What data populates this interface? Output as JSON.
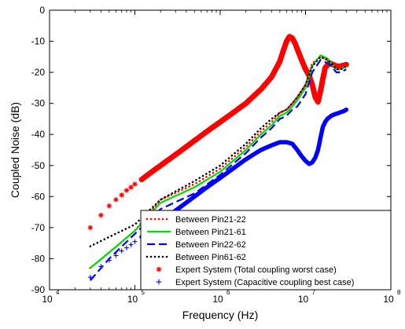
{
  "chart_data": {
    "type": "line",
    "title": "",
    "xlabel": "Frequency (Hz)",
    "ylabel": "Coupled Noise (dB)",
    "xscale": "log",
    "xlim": [
      10000,
      100000000
    ],
    "ylim": [
      -90,
      0
    ],
    "x_ticks": [
      {
        "base": "10",
        "exp": "4"
      },
      {
        "base": "10",
        "exp": "5"
      },
      {
        "base": "10",
        "exp": "6"
      },
      {
        "base": "10",
        "exp": "7"
      },
      {
        "base": "10",
        "exp": "8"
      }
    ],
    "y_ticks": [
      "-90",
      "-80",
      "-70",
      "-60",
      "-50",
      "-40",
      "-30",
      "-20",
      "-10",
      "0"
    ],
    "legend_position": "bottom-right",
    "series": [
      {
        "name": "Between Pin21-22",
        "color": "#ff0000",
        "style": "dotted",
        "x": [
          30000,
          50000,
          100000,
          200000,
          500000,
          1000000,
          2000000,
          3000000,
          4000000,
          5000000,
          6000000,
          7000000,
          8000000,
          10000000,
          12000000,
          15000000,
          18000000,
          20000000,
          23000000,
          26000000,
          30000000
        ],
        "y": [
          -83,
          -78,
          -71,
          -61,
          -56,
          -51,
          -44,
          -39,
          -36,
          -33,
          -32,
          -30,
          -28,
          -24,
          -17,
          -15,
          -16,
          -17,
          -19,
          -19,
          -18
        ]
      },
      {
        "name": "Between Pin21-61",
        "color": "#00dd00",
        "style": "solid",
        "x": [
          30000,
          50000,
          100000,
          200000,
          500000,
          1000000,
          2000000,
          3000000,
          4000000,
          5000000,
          6000000,
          7000000,
          8000000,
          10000000,
          12000000,
          15000000,
          18000000,
          20000000,
          23000000,
          26000000,
          30000000
        ],
        "y": [
          -83,
          -78,
          -71,
          -62,
          -57,
          -52,
          -45,
          -40,
          -37,
          -34,
          -33,
          -31,
          -29,
          -25,
          -18,
          -14.5,
          -15.5,
          -17,
          -19,
          -19,
          -18
        ]
      },
      {
        "name": "Between Pin22-62",
        "color": "#0000ff",
        "style": "dashed",
        "x": [
          30000,
          50000,
          100000,
          200000,
          500000,
          1000000,
          2000000,
          3000000,
          4000000,
          5000000,
          6000000,
          7000000,
          8000000,
          10000000,
          12000000,
          15000000,
          18000000,
          20000000,
          23000000,
          26000000,
          30000000
        ],
        "y": [
          -87,
          -80,
          -72,
          -64,
          -59,
          -53,
          -46,
          -41,
          -38,
          -35,
          -34,
          -32,
          -31,
          -27,
          -20,
          -16,
          -17,
          -18,
          -20,
          -20,
          -19
        ]
      },
      {
        "name": "Between Pin61-62",
        "color": "#000000",
        "style": "dotted",
        "x": [
          30000,
          50000,
          100000,
          200000,
          500000,
          1000000,
          2000000,
          3000000,
          4000000,
          5000000,
          6000000,
          7000000,
          8000000,
          10000000,
          12000000,
          15000000,
          18000000,
          20000000,
          23000000,
          26000000,
          30000000
        ],
        "y": [
          -76,
          -73,
          -69,
          -61,
          -55,
          -50,
          -43,
          -38,
          -35,
          -33,
          -32,
          -30,
          -28,
          -24,
          -18,
          -15,
          -16,
          -17,
          -19,
          -19,
          -18
        ]
      },
      {
        "name": "Expert System (Total coupling worst case)",
        "color": "#ff0000",
        "style": "marker-star",
        "x": [
          30000,
          40000,
          50000,
          60000,
          70000,
          80000,
          90000,
          100000,
          120000,
          150000,
          200000,
          300000,
          500000,
          700000,
          1000000,
          1500000,
          2000000,
          3000000,
          4000000,
          5000000,
          5500000,
          6000000,
          6500000,
          7000000,
          7500000,
          8000000,
          9000000,
          10000000,
          11000000,
          12000000,
          13000000,
          14000000,
          15000000,
          16000000,
          17000000,
          19000000,
          21000000,
          23000000,
          26000000,
          30000000
        ],
        "y": [
          -70,
          -66,
          -63,
          -61,
          -59.5,
          -58,
          -57,
          -56,
          -54.5,
          -52.5,
          -50,
          -46.5,
          -42,
          -39,
          -36,
          -32.5,
          -30,
          -25.5,
          -21.5,
          -16.5,
          -13,
          -10,
          -8.5,
          -9,
          -10.5,
          -12.5,
          -16,
          -19,
          -21,
          -24,
          -28,
          -29.5,
          -26,
          -22,
          -18.5,
          -17,
          -17.5,
          -18,
          -18,
          -17.5
        ]
      },
      {
        "name": "Expert System (Capacitive coupling best case)",
        "color": "#0000ff",
        "style": "marker-plus",
        "x": [
          30000,
          40000,
          50000,
          60000,
          70000,
          80000,
          90000,
          100000,
          120000,
          150000,
          200000,
          300000,
          500000,
          700000,
          1000000,
          1500000,
          2000000,
          3000000,
          4000000,
          5000000,
          6000000,
          7000000,
          8000000,
          9000000,
          10000000,
          11000000,
          12000000,
          13000000,
          14000000,
          15000000,
          16000000,
          17000000,
          18000000,
          20000000,
          22000000,
          25000000,
          28000000,
          30000000
        ],
        "y": [
          -86,
          -82.5,
          -80.5,
          -79,
          -77.5,
          -76.5,
          -75.5,
          -74.5,
          -73,
          -71,
          -68.5,
          -64.5,
          -60,
          -57,
          -54,
          -50.5,
          -48,
          -45,
          -43.5,
          -42.5,
          -42.5,
          -43,
          -45,
          -47,
          -48.5,
          -49.5,
          -49,
          -47.5,
          -45,
          -41,
          -37.5,
          -36,
          -35,
          -34,
          -33.5,
          -33,
          -32.5,
          -32
        ]
      }
    ]
  }
}
